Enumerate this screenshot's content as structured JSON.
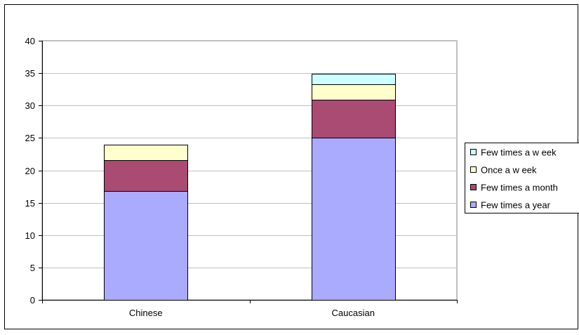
{
  "chart_data": {
    "type": "bar",
    "stacked": true,
    "title": "",
    "xlabel": "",
    "ylabel": "",
    "categories": [
      "Chinese",
      "Caucasian"
    ],
    "ylim": [
      0,
      40
    ],
    "yticks": [
      0,
      5,
      10,
      15,
      20,
      25,
      30,
      35,
      40
    ],
    "grid": true,
    "legend_position": "right",
    "series": [
      {
        "name": "Few times a year",
        "values": [
          16.8,
          25.0
        ],
        "color": "#aaaaff"
      },
      {
        "name": "Few times a month",
        "values": [
          4.8,
          5.9
        ],
        "color": "#a94b73"
      },
      {
        "name": "Once a w eek",
        "values": [
          2.4,
          2.4
        ],
        "color": "#ffffcc"
      },
      {
        "name": "Few times a w eek",
        "values": [
          0,
          1.6
        ],
        "color": "#ccffff"
      }
    ]
  }
}
